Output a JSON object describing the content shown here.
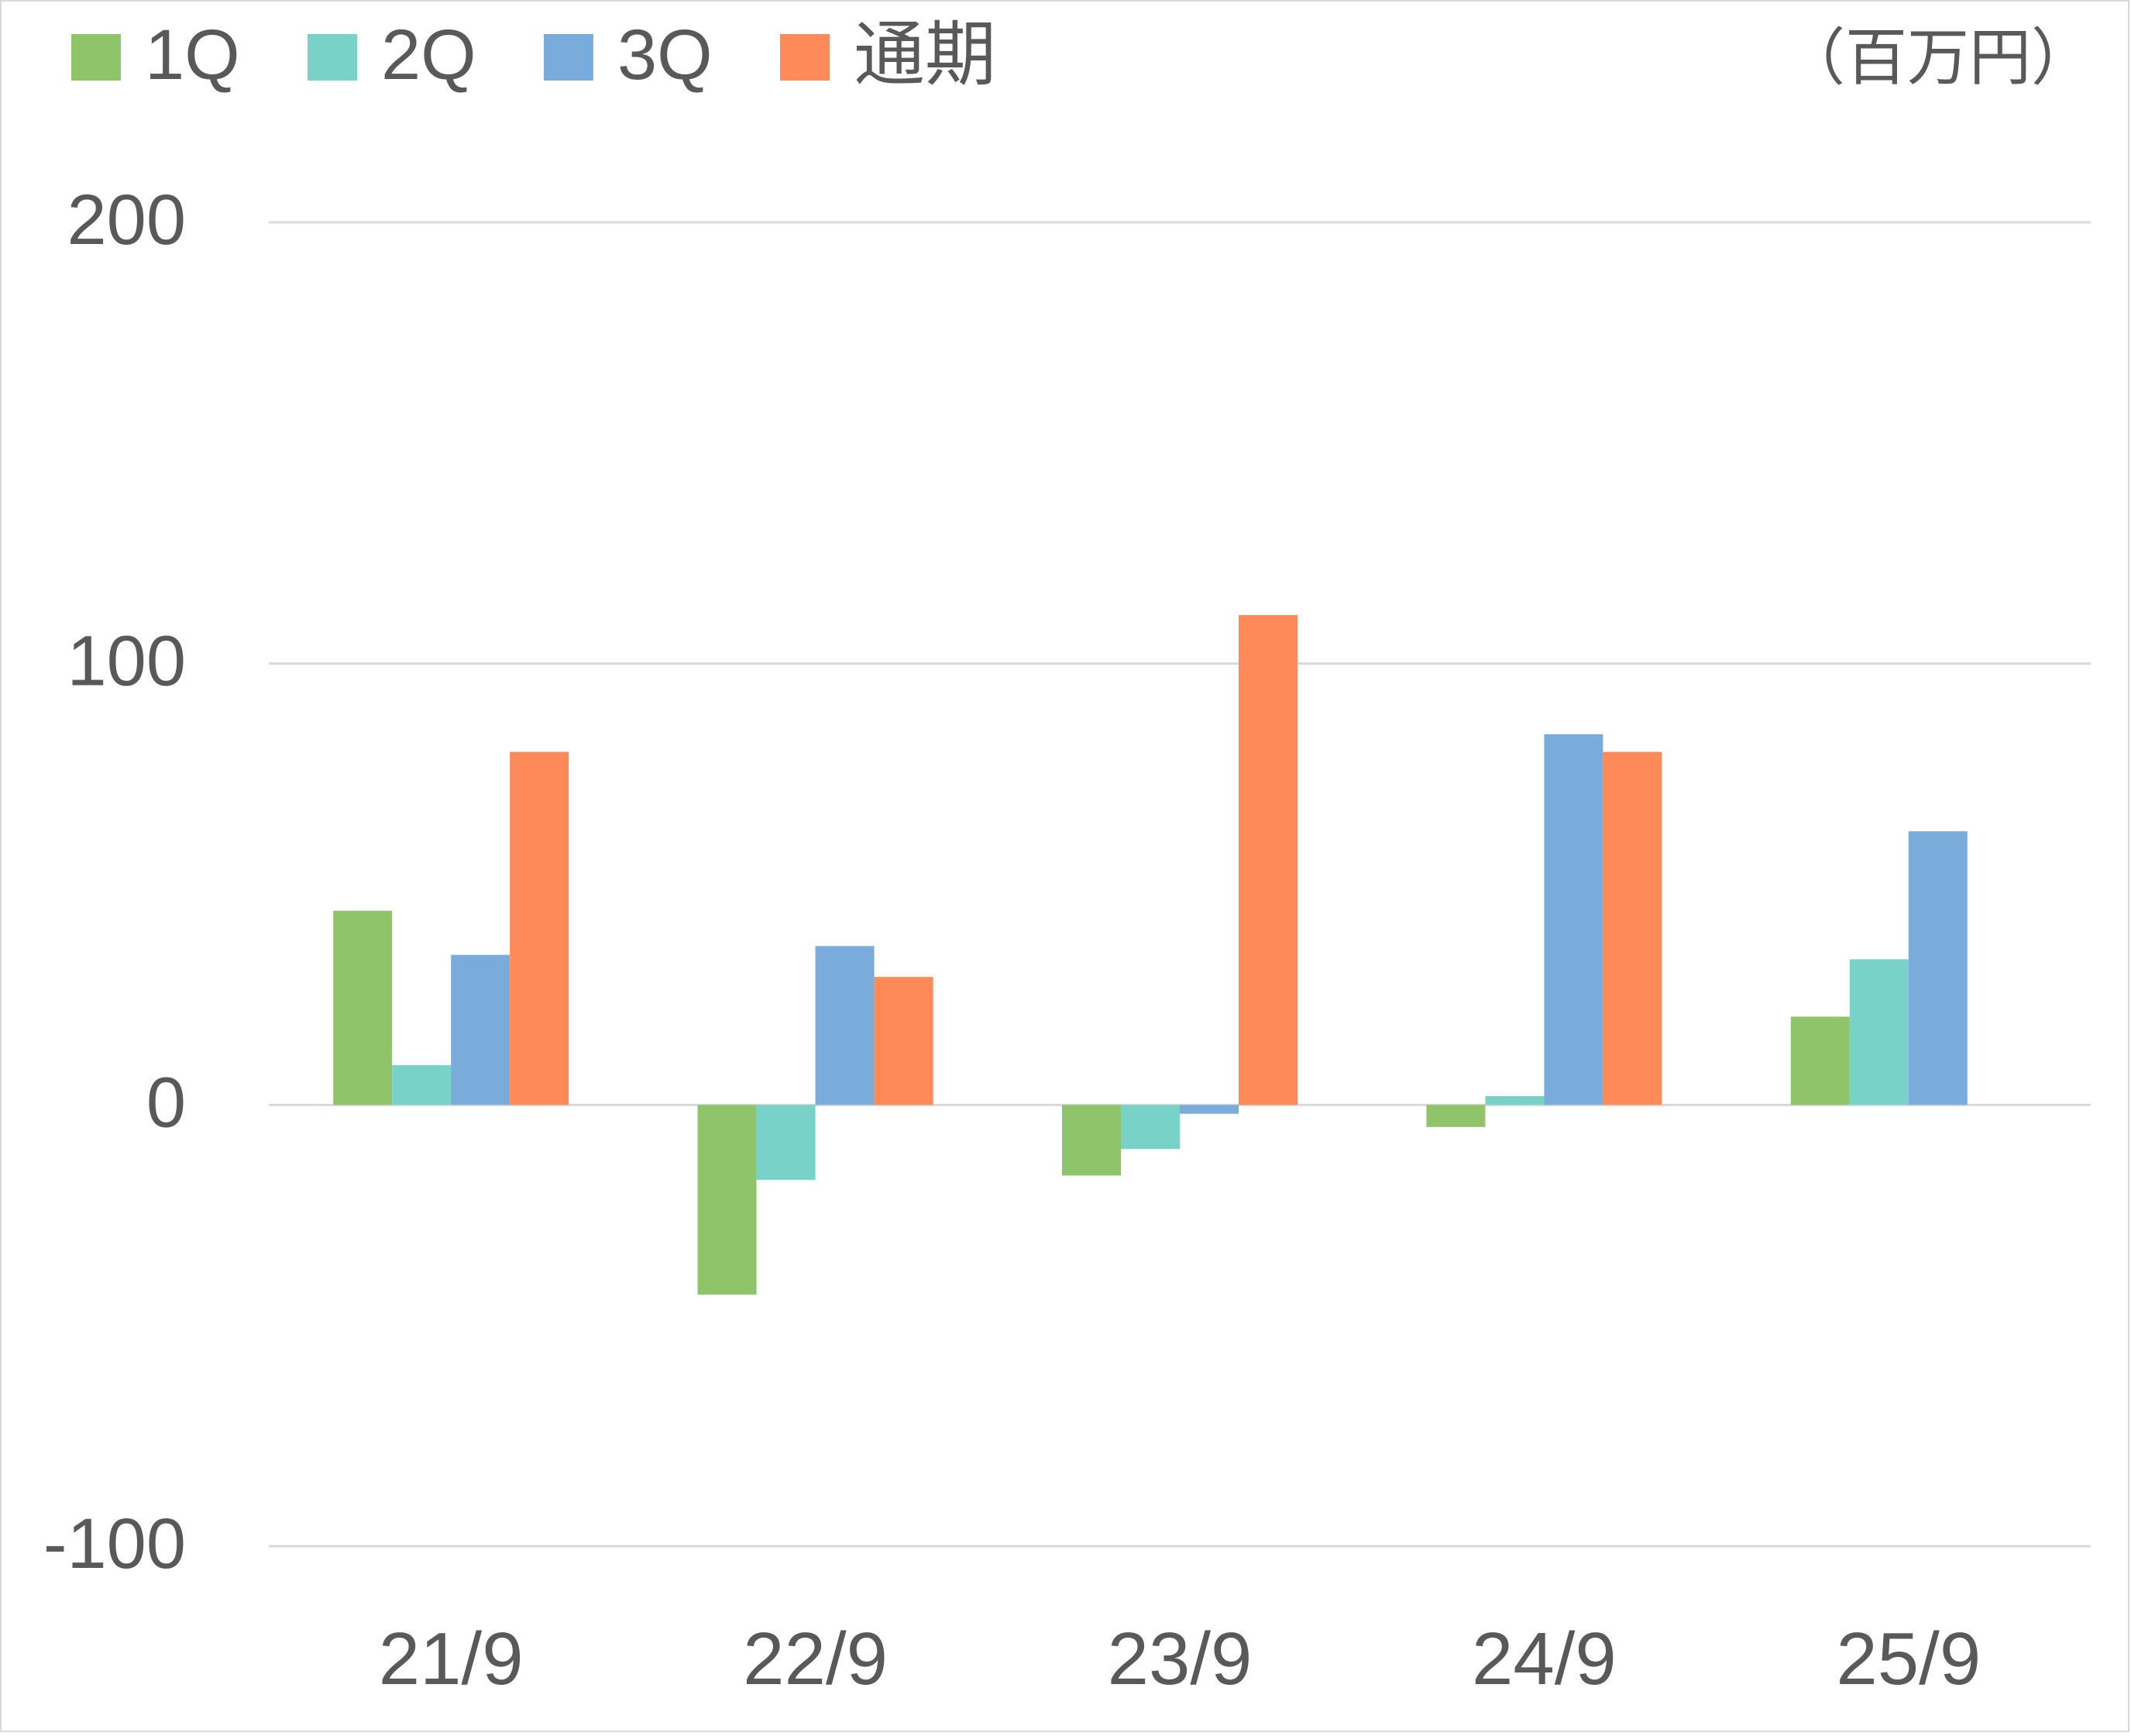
{
  "chart_data": {
    "type": "bar",
    "unit": "（百万円）",
    "categories": [
      "21/9",
      "22/9",
      "23/9",
      "24/9",
      "25/9"
    ],
    "series": [
      {
        "name": "1Q",
        "color": "#8fc46a",
        "values": [
          44,
          -43,
          -16,
          -5,
          20
        ]
      },
      {
        "name": "2Q",
        "color": "#79d2c8",
        "values": [
          9,
          -17,
          -10,
          2,
          33
        ]
      },
      {
        "name": "3Q",
        "color": "#7aacdb",
        "values": [
          34,
          36,
          -2,
          84,
          62
        ]
      },
      {
        "name": "通期",
        "color": "#ff8a59",
        "values": [
          80,
          29,
          111,
          80,
          null
        ]
      }
    ],
    "ylim": [
      -100,
      200
    ],
    "yticks": [
      200,
      100,
      0,
      -100
    ],
    "grid": true,
    "legend_position": "top-left"
  }
}
